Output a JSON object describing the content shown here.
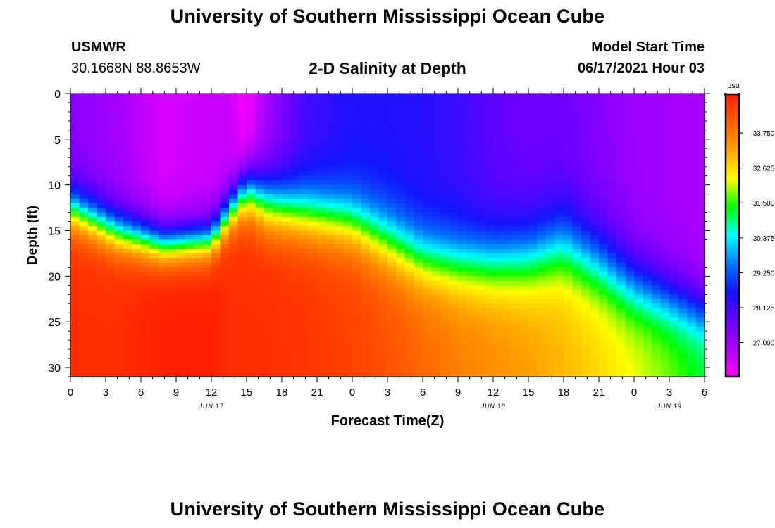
{
  "page": {
    "title_top": "University of Southern Mississippi Ocean Cube",
    "title_bottom": "University of Southern Mississippi Ocean Cube",
    "station": "USMWR",
    "coords": "30.1668N  88.8653W",
    "subtitle": "2-D Salinity at Depth",
    "start_label": "Model Start Time",
    "start_time": "06/17/2021 Hour 03"
  },
  "chart_data": {
    "type": "heatmap",
    "title": "2-D Salinity at Depth",
    "xlabel": "Forecast Time(Z)",
    "ylabel": "Depth (ft)",
    "x_ticks": [
      "0",
      "3",
      "6",
      "9",
      "12",
      "15",
      "18",
      "21",
      "0",
      "3",
      "6",
      "9",
      "12",
      "15",
      "18",
      "21",
      "0",
      "3",
      "6"
    ],
    "date_labels": [
      {
        "label": "JUN 17",
        "hour": 12
      },
      {
        "label": "JUN 18",
        "hour": 36
      },
      {
        "label": "JUN 19",
        "hour": 51
      }
    ],
    "xlim": [
      0,
      54
    ],
    "ylim": [
      0,
      31
    ],
    "y_ticks": [
      0,
      5,
      10,
      15,
      20,
      25,
      30
    ],
    "colorbar_unit": "psu",
    "colorbar_ticks": [
      "33.750",
      "32.625",
      "31.500",
      "30.375",
      "29.250",
      "28.125",
      "27.000"
    ],
    "color_range": [
      25.9,
      35.0
    ],
    "grid": false,
    "profile_hours": [
      0,
      4,
      8,
      12,
      13.5,
      15,
      17,
      20,
      24,
      27,
      30,
      33,
      36,
      39,
      42,
      45,
      48,
      51,
      54
    ],
    "surface_salinity": [
      27.3,
      26.9,
      26.3,
      26.5,
      26.5,
      25.9,
      27.0,
      28.1,
      28.5,
      28.5,
      28.4,
      28.2,
      27.8,
      27.6,
      27.6,
      27.3,
      27.0,
      26.9,
      26.8
    ],
    "bottom_salinity": [
      34.8,
      34.8,
      35.0,
      35.0,
      34.8,
      34.8,
      34.8,
      34.7,
      34.5,
      34.3,
      34.0,
      33.7,
      33.5,
      33.3,
      33.0,
      32.7,
      32.3,
      31.8,
      31.2
    ],
    "halocline_depth_ft": [
      12.5,
      15.0,
      16.5,
      16.0,
      13.0,
      10.5,
      12.0,
      13.0,
      14.0,
      16.0,
      18.0,
      18.5,
      18.5,
      18.0,
      16.5,
      18.5,
      21.0,
      22.5,
      24.0
    ],
    "halocline_thickness_ft": [
      6.0,
      6.0,
      5.5,
      5.5,
      5.5,
      7.0,
      8.0,
      8.0,
      8.0,
      8.5,
      8.5,
      9.0,
      9.5,
      10.0,
      10.5,
      10.0,
      9.0,
      8.0,
      7.0
    ]
  },
  "colors": {
    "palette": [
      "#ff00ff",
      "#aa00ff",
      "#6600ff",
      "#1414ff",
      "#0078ff",
      "#00ffff",
      "#00ff00",
      "#ffff00",
      "#ffa500",
      "#ff6000",
      "#ff2000"
    ]
  }
}
